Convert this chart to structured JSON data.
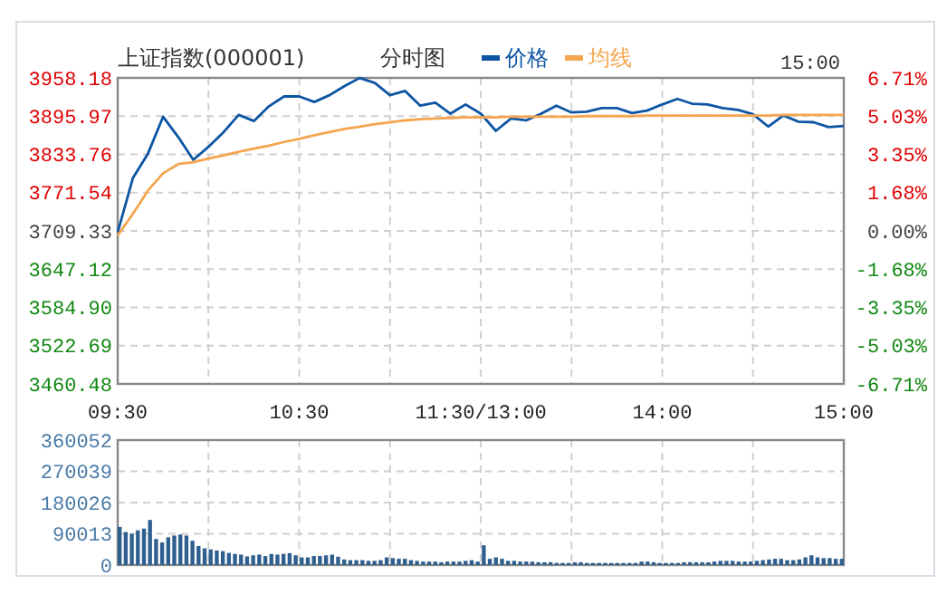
{
  "chart_data": [
    {
      "type": "line",
      "title": "上证指数(000001)",
      "subtitle": "分时图",
      "annotations": [
        "15:00"
      ],
      "legend": "top",
      "grid": true,
      "line_style": "solid",
      "categories": [
        "09:30",
        null,
        null,
        null,
        null,
        null,
        null,
        null,
        null,
        null,
        null,
        null,
        "10:30",
        null,
        null,
        null,
        null,
        null,
        null,
        null,
        null,
        null,
        null,
        null,
        "11:30/13:00",
        null,
        null,
        null,
        null,
        null,
        null,
        null,
        null,
        null,
        null,
        null,
        "14:00",
        null,
        null,
        null,
        null,
        null,
        null,
        null,
        null,
        null,
        null,
        null,
        "15:00"
      ],
      "ylim": [
        3460.48,
        3958.18
      ],
      "yticks": [
        3460.48,
        3522.69,
        {
          "value": 3584.9,
          "label": "3584.90"
        },
        3647.12,
        3709.33,
        3771.54,
        3833.76,
        3895.97,
        3958.18
      ],
      "y2lim": [
        -6.71,
        6.71
      ],
      "y2ticks": [
        {
          "value": -6.71,
          "label": "-6.71%"
        },
        {
          "value": -5.03,
          "label": "-5.03%"
        },
        {
          "value": -3.35,
          "label": "-3.35%"
        },
        {
          "value": -1.68,
          "label": "-1.68%"
        },
        {
          "value": 0,
          "label": "0.00%"
        },
        {
          "value": 1.68,
          "label": "1.68%"
        },
        {
          "value": 3.35,
          "label": "3.35%"
        },
        {
          "value": 5.03,
          "label": "5.03%"
        },
        {
          "value": 6.71,
          "label": "6.71%"
        }
      ],
      "series": [
        {
          "name": "价格",
          "color": "#0d55a3",
          "values": [
            3707,
            3795,
            3835,
            3895,
            3862,
            3825,
            3846,
            3870,
            3898,
            3888,
            3912,
            3928,
            3928,
            3919,
            3930,
            3945,
            3958,
            3950,
            3930,
            3937,
            3913,
            3918,
            3900,
            3915,
            3900,
            3872,
            3892,
            3889,
            3900,
            3913,
            3902,
            3903,
            3909,
            3909,
            3901,
            3905,
            3915,
            3924,
            3916,
            3915,
            3909,
            3906,
            3899,
            3879,
            3897,
            3887,
            3886,
            3878,
            3880
          ]
        },
        {
          "name": "均线",
          "color": "#f5a550",
          "values": [
            3702,
            3737,
            3775,
            3803,
            3818,
            3821,
            3827,
            3832,
            3838,
            3843,
            3848,
            3854,
            3859,
            3865,
            3870,
            3875,
            3879,
            3883,
            3886,
            3889,
            3891,
            3892,
            3893,
            3894,
            3894,
            3894,
            3895,
            3895,
            3895,
            3895,
            3895,
            3896,
            3896,
            3896,
            3896,
            3897,
            3897,
            3897,
            3897,
            3897,
            3897,
            3897,
            3897,
            3897,
            3898,
            3898,
            3898,
            3898,
            3898
          ]
        }
      ]
    },
    {
      "type": "bar",
      "grid": true,
      "tick_labels": "y",
      "color": "#2f5f8f",
      "categories": [
        null,
        null,
        null,
        null,
        null,
        null,
        null,
        null,
        null,
        null,
        null,
        null,
        null,
        null,
        null,
        null,
        null,
        null,
        null,
        null,
        null,
        null,
        null,
        null,
        null,
        null,
        null,
        null,
        null,
        null,
        null,
        null,
        null,
        null,
        null,
        null,
        null,
        null,
        null,
        null,
        null,
        null,
        null,
        null,
        null,
        null,
        null,
        null,
        null,
        null,
        null,
        null,
        null,
        null,
        null,
        null,
        null,
        null,
        null,
        null,
        null,
        null,
        null,
        null,
        null,
        null,
        null,
        null,
        null,
        null,
        null,
        null,
        null,
        null,
        null,
        null,
        null,
        null,
        null,
        null,
        null,
        null,
        null,
        null,
        null,
        null,
        null,
        null,
        null,
        null,
        null,
        null,
        null,
        null,
        null,
        null,
        null,
        null,
        null,
        null,
        null,
        null,
        null,
        null,
        null,
        null,
        null,
        null,
        null,
        null,
        null,
        null,
        null,
        null,
        null,
        null,
        null,
        null,
        null,
        null
      ],
      "ylim": [
        0,
        360052
      ],
      "yticks": [
        0,
        90013,
        180026,
        270039,
        360052
      ],
      "values": [
        110000,
        95000,
        90000,
        100000,
        105000,
        130000,
        75000,
        65000,
        80000,
        85000,
        88000,
        85000,
        70000,
        55000,
        48000,
        45000,
        42000,
        40000,
        35000,
        32000,
        30000,
        25000,
        28000,
        30000,
        26000,
        32000,
        30000,
        32000,
        34000,
        28000,
        22000,
        22000,
        26000,
        26000,
        28000,
        30000,
        24000,
        16000,
        14000,
        14000,
        14000,
        12000,
        12000,
        14000,
        22000,
        20000,
        18000,
        18000,
        14000,
        12000,
        10000,
        10000,
        10000,
        8000,
        10000,
        10000,
        10000,
        12000,
        14000,
        10000,
        57000,
        18000,
        22000,
        18000,
        12000,
        12000,
        10000,
        10000,
        10000,
        8000,
        8000,
        8000,
        6000,
        6000,
        6000,
        8000,
        8000,
        6000,
        6000,
        6000,
        6000,
        6000,
        6000,
        6000,
        6000,
        6000,
        10000,
        10000,
        8000,
        6000,
        6000,
        6000,
        6000,
        8000,
        8000,
        8000,
        8000,
        8000,
        10000,
        12000,
        12000,
        12000,
        10000,
        10000,
        10000,
        12000,
        14000,
        16000,
        18000,
        18000,
        14000,
        14000,
        16000,
        22000,
        28000,
        22000,
        20000,
        20000,
        18000,
        18000
      ]
    }
  ]
}
